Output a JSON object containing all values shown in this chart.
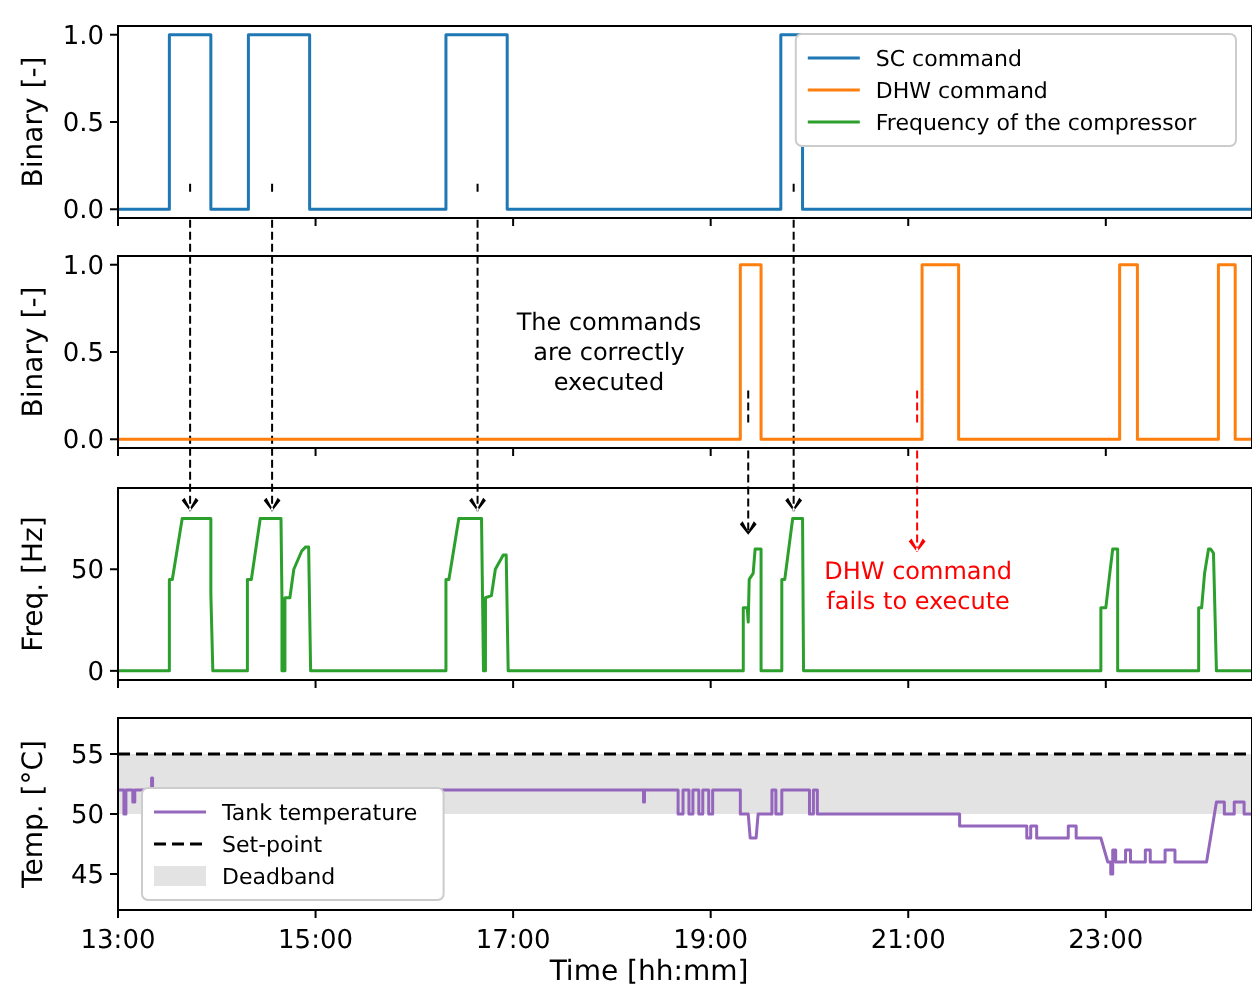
{
  "chart_data": [
    {
      "type": "line",
      "ylabel": "Binary [-]",
      "xlim": [
        13,
        24.48
      ],
      "xticks": [
        {
          "value": 13,
          "label": null
        },
        {
          "value": 15,
          "label": null
        },
        {
          "value": 17,
          "label": null
        },
        {
          "value": 19,
          "label": null
        },
        {
          "value": 21,
          "label": null
        },
        {
          "value": 23,
          "label": null
        }
      ],
      "ylim": [
        -0.05,
        1.05
      ],
      "yticks": [
        {
          "value": 0,
          "label": "0.0"
        },
        {
          "value": 0.5,
          "label": "0.5"
        },
        {
          "value": 1,
          "label": "1.0"
        }
      ],
      "tick_labels": "y",
      "grid": false,
      "legend": "top right",
      "series": [
        {
          "name": "SC command",
          "color": "#1f77b4",
          "x": [
            13,
            13.52,
            13.52,
            13.94,
            13.94,
            14.32,
            14.32,
            14.94,
            14.94,
            16.32,
            16.32,
            16.94,
            16.94,
            19.71,
            19.71,
            19.93,
            19.93,
            24.48
          ],
          "values": [
            0,
            0,
            1,
            1,
            0,
            0,
            1,
            1,
            0,
            0,
            1,
            1,
            0,
            0,
            1,
            1,
            0,
            0
          ]
        }
      ]
    },
    {
      "type": "line",
      "ylabel": "Binary [-]",
      "xlim": [
        13,
        24.48
      ],
      "xticks": [
        {
          "value": 13,
          "label": null
        },
        {
          "value": 15,
          "label": null
        },
        {
          "value": 17,
          "label": null
        },
        {
          "value": 19,
          "label": null
        },
        {
          "value": 21,
          "label": null
        },
        {
          "value": 23,
          "label": null
        }
      ],
      "ylim": [
        -0.05,
        1.05
      ],
      "yticks": [
        {
          "value": 0,
          "label": "0.0"
        },
        {
          "value": 0.5,
          "label": "0.5"
        },
        {
          "value": 1,
          "label": "1.0"
        }
      ],
      "tick_labels": "y",
      "grid": false,
      "annotations": [
        "The commands are correctly executed"
      ],
      "series": [
        {
          "name": "DHW command",
          "color": "#ff7f0e",
          "x": [
            13,
            19.3,
            19.3,
            19.51,
            19.51,
            21.14,
            21.14,
            21.51,
            21.51,
            23.14,
            23.14,
            23.32,
            23.32,
            24.14,
            24.14,
            24.31,
            24.31,
            24.48
          ],
          "values": [
            0,
            0,
            1,
            1,
            0,
            0,
            1,
            1,
            0,
            0,
            1,
            1,
            0,
            0,
            1,
            1,
            0,
            0
          ]
        }
      ]
    },
    {
      "type": "line",
      "ylabel": "Freq. [Hz]",
      "xlim": [
        13,
        24.48
      ],
      "xticks": [
        {
          "value": 13,
          "label": null
        },
        {
          "value": 15,
          "label": null
        },
        {
          "value": 17,
          "label": null
        },
        {
          "value": 19,
          "label": null
        },
        {
          "value": 21,
          "label": null
        },
        {
          "value": 23,
          "label": null
        }
      ],
      "ylim": [
        -4.5,
        90
      ],
      "yticks": [
        0,
        50
      ],
      "tick_labels": "y",
      "grid": false,
      "annotations": [
        "DHW command fails to execute"
      ],
      "series": [
        {
          "name": "Frequency of the compressor",
          "color": "#2ca02c",
          "x": [
            13,
            13.52,
            13.52,
            13.55,
            13.65,
            13.94,
            13.94,
            13.96,
            14.31,
            14.31,
            14.35,
            14.44,
            14.65,
            14.66,
            14.66,
            14.69,
            14.69,
            14.74,
            14.78,
            14.86,
            14.9,
            14.93,
            14.95,
            16.32,
            16.32,
            16.35,
            16.45,
            16.68,
            16.7,
            16.72,
            16.72,
            16.78,
            16.82,
            16.9,
            16.93,
            16.95,
            19.33,
            19.33,
            19.37,
            19.38,
            19.39,
            19.43,
            19.45,
            19.51,
            19.51,
            19.72,
            19.72,
            19.75,
            19.83,
            19.93,
            19.94,
            22.95,
            22.95,
            23.0,
            23.04,
            23.07,
            23.12,
            23.12,
            23.94,
            23.94,
            23.97,
            24.0,
            24.04,
            24.06,
            24.09,
            24.12,
            24.48
          ],
          "values": [
            0,
            0,
            45,
            45,
            75,
            75,
            38,
            0,
            0,
            45,
            45,
            75,
            75,
            35,
            0,
            0,
            36,
            36,
            50,
            59,
            61,
            61,
            0,
            0,
            45,
            45,
            75,
            75,
            0,
            0,
            36,
            37,
            50,
            57,
            57,
            0,
            0,
            31,
            31,
            24,
            45,
            48,
            60,
            60,
            0,
            0,
            45,
            45,
            75,
            75,
            0,
            0,
            31,
            31,
            48,
            60,
            60,
            0,
            0,
            31,
            31,
            48,
            60,
            60,
            58,
            0,
            0
          ]
        }
      ]
    },
    {
      "type": "line",
      "ylabel": "Temp. [°C]",
      "xlabel": "Time [hh:mm]",
      "xlim": [
        13,
        24.48
      ],
      "xticks": [
        {
          "value": 13,
          "label": "13:00"
        },
        {
          "value": 15,
          "label": "15:00"
        },
        {
          "value": 17,
          "label": "17:00"
        },
        {
          "value": 19,
          "label": "19:00"
        },
        {
          "value": 21,
          "label": "21:00"
        },
        {
          "value": 23,
          "label": "23:00"
        }
      ],
      "ylim": [
        42,
        58
      ],
      "yticks": [
        45,
        50,
        55
      ],
      "grid": false,
      "legend": "bottom left",
      "ref_lines": [
        {
          "axis": "y",
          "value": 55,
          "label": "Set-point",
          "color": "#000000",
          "line_style": "dashed"
        }
      ],
      "bands": [
        {
          "axis": "y",
          "from": 50,
          "to": 55,
          "label": "Deadband",
          "color": "#e3e3e3"
        }
      ],
      "series": [
        {
          "name": "Tank temperature",
          "color": "#9467bd",
          "x": [
            13,
            13.06,
            13.06,
            13.08,
            13.08,
            13.15,
            13.15,
            13.17,
            13.17,
            13.34,
            13.34,
            13.35,
            13.35,
            18.32,
            18.32,
            18.33,
            18.33,
            18.67,
            18.67,
            18.72,
            18.72,
            18.78,
            18.78,
            18.82,
            18.82,
            18.88,
            18.88,
            18.92,
            18.92,
            18.98,
            18.98,
            19.02,
            19.02,
            19.3,
            19.3,
            19.38,
            19.4,
            19.46,
            19.48,
            19.62,
            19.62,
            19.66,
            19.66,
            19.72,
            19.72,
            20.0,
            20.0,
            20.04,
            20.04,
            20.08,
            20.08,
            21.52,
            21.52,
            22.2,
            22.2,
            22.24,
            22.24,
            22.3,
            22.3,
            22.62,
            22.62,
            22.7,
            22.7,
            22.95,
            23.02,
            23.05,
            23.05,
            23.07,
            23.07,
            23.1,
            23.1,
            23.2,
            23.2,
            23.25,
            23.25,
            23.4,
            23.4,
            23.45,
            23.45,
            23.6,
            23.6,
            23.7,
            23.7,
            24.02,
            24.1,
            24.12,
            24.2,
            24.2,
            24.3,
            24.3,
            24.4,
            24.4,
            24.48
          ],
          "values": [
            52,
            52,
            50,
            50,
            52,
            52,
            51,
            51,
            52,
            52,
            53,
            53,
            52,
            52,
            51,
            51,
            52,
            52,
            50,
            50,
            52,
            52,
            50,
            50,
            52,
            52,
            50,
            50,
            52,
            52,
            50,
            50,
            52,
            52,
            50,
            50,
            48,
            48,
            50,
            50,
            52,
            52,
            50,
            50,
            52,
            52,
            50,
            50,
            52,
            52,
            50,
            50,
            49,
            49,
            48,
            48,
            49,
            49,
            48,
            48,
            49,
            49,
            48,
            48,
            46,
            46,
            45,
            45,
            47,
            47,
            46,
            46,
            47,
            47,
            46,
            46,
            47,
            47,
            46,
            46,
            47,
            47,
            46,
            46,
            50,
            51,
            51,
            50,
            50,
            51,
            51,
            50,
            50
          ]
        }
      ]
    }
  ]
}
